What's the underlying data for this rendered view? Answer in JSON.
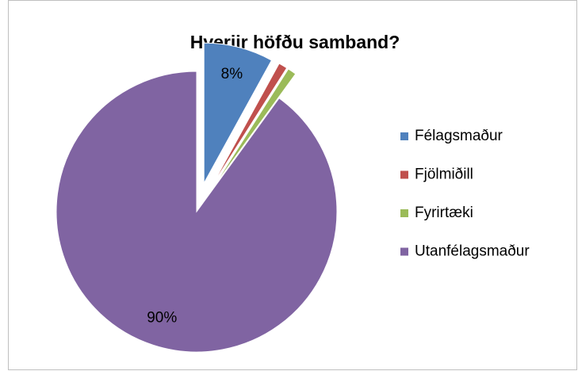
{
  "chart_data": {
    "type": "pie",
    "title": "Hverjir höfðu samband?",
    "categories": [
      "Félagsmaður",
      "Fjölmiðill",
      "Fyrirtæki",
      "Utanfélagsmaður"
    ],
    "values": [
      8,
      1,
      1,
      90
    ],
    "value_labels": [
      "8%",
      null,
      null,
      "90%"
    ],
    "colors": [
      "#4f81bd",
      "#c0504d",
      "#9bbb59",
      "#8064a2"
    ],
    "exploded": [
      true,
      true,
      true,
      false
    ],
    "legend": "right"
  }
}
